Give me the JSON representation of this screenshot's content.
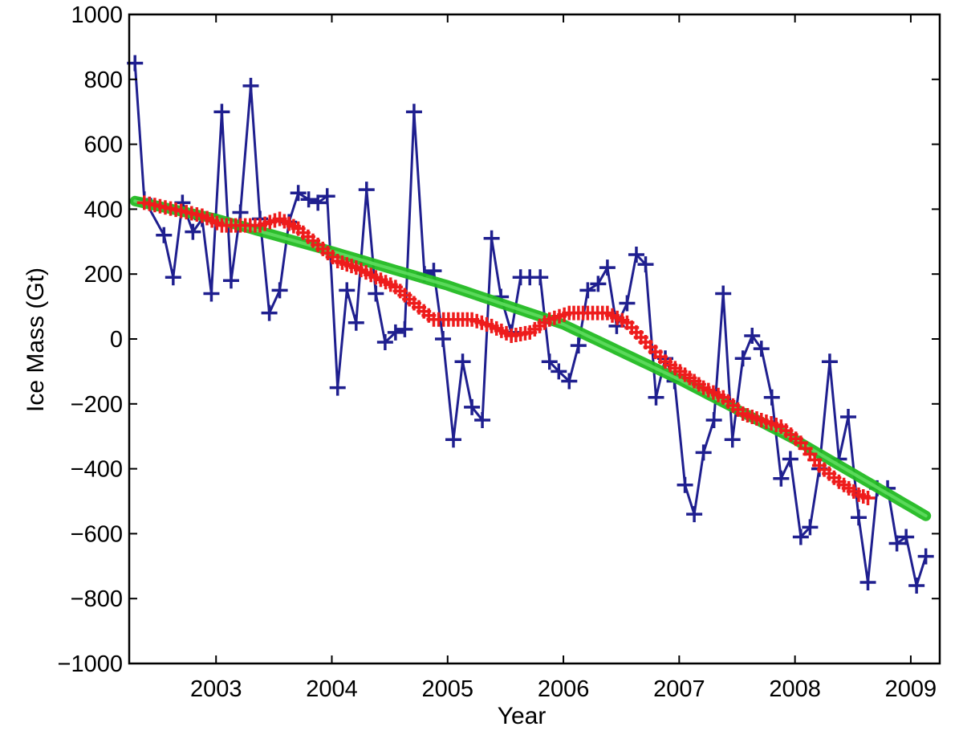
{
  "chart_data": {
    "type": "line",
    "title": "",
    "xlabel": "Year",
    "ylabel": "Ice Mass (Gt)",
    "xlim": [
      2002.25,
      2009.25
    ],
    "ylim": [
      -1000,
      1000
    ],
    "xticks": [
      2003,
      2004,
      2005,
      2006,
      2007,
      2008,
      2009
    ],
    "yticks": [
      -1000,
      -800,
      -600,
      -400,
      -200,
      0,
      200,
      400,
      600,
      800,
      1000
    ],
    "xtick_labels": [
      "2003",
      "2004",
      "2005",
      "2006",
      "2007",
      "2008",
      "2009"
    ],
    "ytick_labels": [
      "−1000",
      "−800",
      "−600",
      "−400",
      "−200",
      "0",
      "200",
      "400",
      "600",
      "800",
      "1000"
    ],
    "grid": false,
    "legend": null,
    "series": [
      {
        "color": "#1f1f8f",
        "marker": "+",
        "style": "line+markers",
        "x": [
          2002.3,
          2002.38,
          2002.55,
          2002.63,
          2002.71,
          2002.8,
          2002.88,
          2002.96,
          2003.05,
          2003.13,
          2003.21,
          2003.3,
          2003.38,
          2003.46,
          2003.55,
          2003.63,
          2003.71,
          2003.8,
          2003.88,
          2003.96,
          2004.05,
          2004.13,
          2004.21,
          2004.3,
          2004.38,
          2004.46,
          2004.55,
          2004.63,
          2004.71,
          2004.8,
          2004.88,
          2004.96,
          2005.05,
          2005.13,
          2005.21,
          2005.3,
          2005.38,
          2005.46,
          2005.55,
          2005.63,
          2005.71,
          2005.8,
          2005.88,
          2005.96,
          2006.05,
          2006.13,
          2006.21,
          2006.3,
          2006.38,
          2006.46,
          2006.55,
          2006.63,
          2006.71,
          2006.8,
          2006.88,
          2006.96,
          2007.05,
          2007.13,
          2007.21,
          2007.3,
          2007.38,
          2007.46,
          2007.55,
          2007.63,
          2007.71,
          2007.8,
          2007.88,
          2007.96,
          2008.05,
          2008.13,
          2008.21,
          2008.3,
          2008.38,
          2008.46,
          2008.55,
          2008.63,
          2008.71,
          2008.8,
          2008.88,
          2008.96,
          2009.05,
          2009.13
        ],
        "y": [
          850,
          430,
          320,
          190,
          420,
          330,
          370,
          140,
          700,
          180,
          390,
          780,
          370,
          80,
          150,
          360,
          450,
          430,
          420,
          440,
          -150,
          150,
          50,
          460,
          140,
          -10,
          20,
          30,
          700,
          200,
          210,
          0,
          -310,
          -70,
          -210,
          -250,
          310,
          130,
          20,
          190,
          190,
          190,
          -70,
          -100,
          -130,
          -20,
          150,
          170,
          220,
          40,
          110,
          260,
          230,
          -180,
          -60,
          -130,
          -450,
          -540,
          -350,
          -250,
          140,
          -310,
          -60,
          10,
          -30,
          -180,
          -430,
          -370,
          -610,
          -580,
          -400,
          -70,
          -370,
          -240,
          -550,
          -750,
          -460,
          -460,
          -630,
          -610,
          -760,
          -670
        ]
      },
      {
        "color": "#ee1c1c",
        "marker": "+",
        "style": "markers",
        "x": [
          2002.38,
          2002.88,
          2003.05,
          2003.21,
          2003.38,
          2003.55,
          2003.71,
          2003.88,
          2004.05,
          2004.21,
          2004.38,
          2004.55,
          2004.71,
          2004.88,
          2005.05,
          2005.21,
          2005.38,
          2005.55,
          2005.71,
          2005.88,
          2006.05,
          2006.21,
          2006.38,
          2006.55,
          2006.71,
          2006.88,
          2007.05,
          2007.21,
          2007.38,
          2007.55,
          2007.71,
          2007.88,
          2008.05,
          2008.21,
          2008.38,
          2008.55,
          2008.63
        ],
        "y": [
          420,
          380,
          350,
          350,
          350,
          370,
          340,
          290,
          240,
          220,
          190,
          160,
          110,
          60,
          60,
          60,
          40,
          10,
          20,
          60,
          80,
          80,
          80,
          50,
          -10,
          -70,
          -110,
          -150,
          -180,
          -230,
          -250,
          -270,
          -320,
          -390,
          -440,
          -480,
          -490
        ]
      },
      {
        "color": "#22bb22",
        "marker": "",
        "style": "band",
        "x": [
          2002.3,
          2003.0,
          2004.0,
          2005.0,
          2006.0,
          2007.0,
          2008.0,
          2009.13
        ],
        "y": [
          425,
          370,
          270,
          165,
          45,
          -125,
          -310,
          -545
        ]
      }
    ]
  }
}
